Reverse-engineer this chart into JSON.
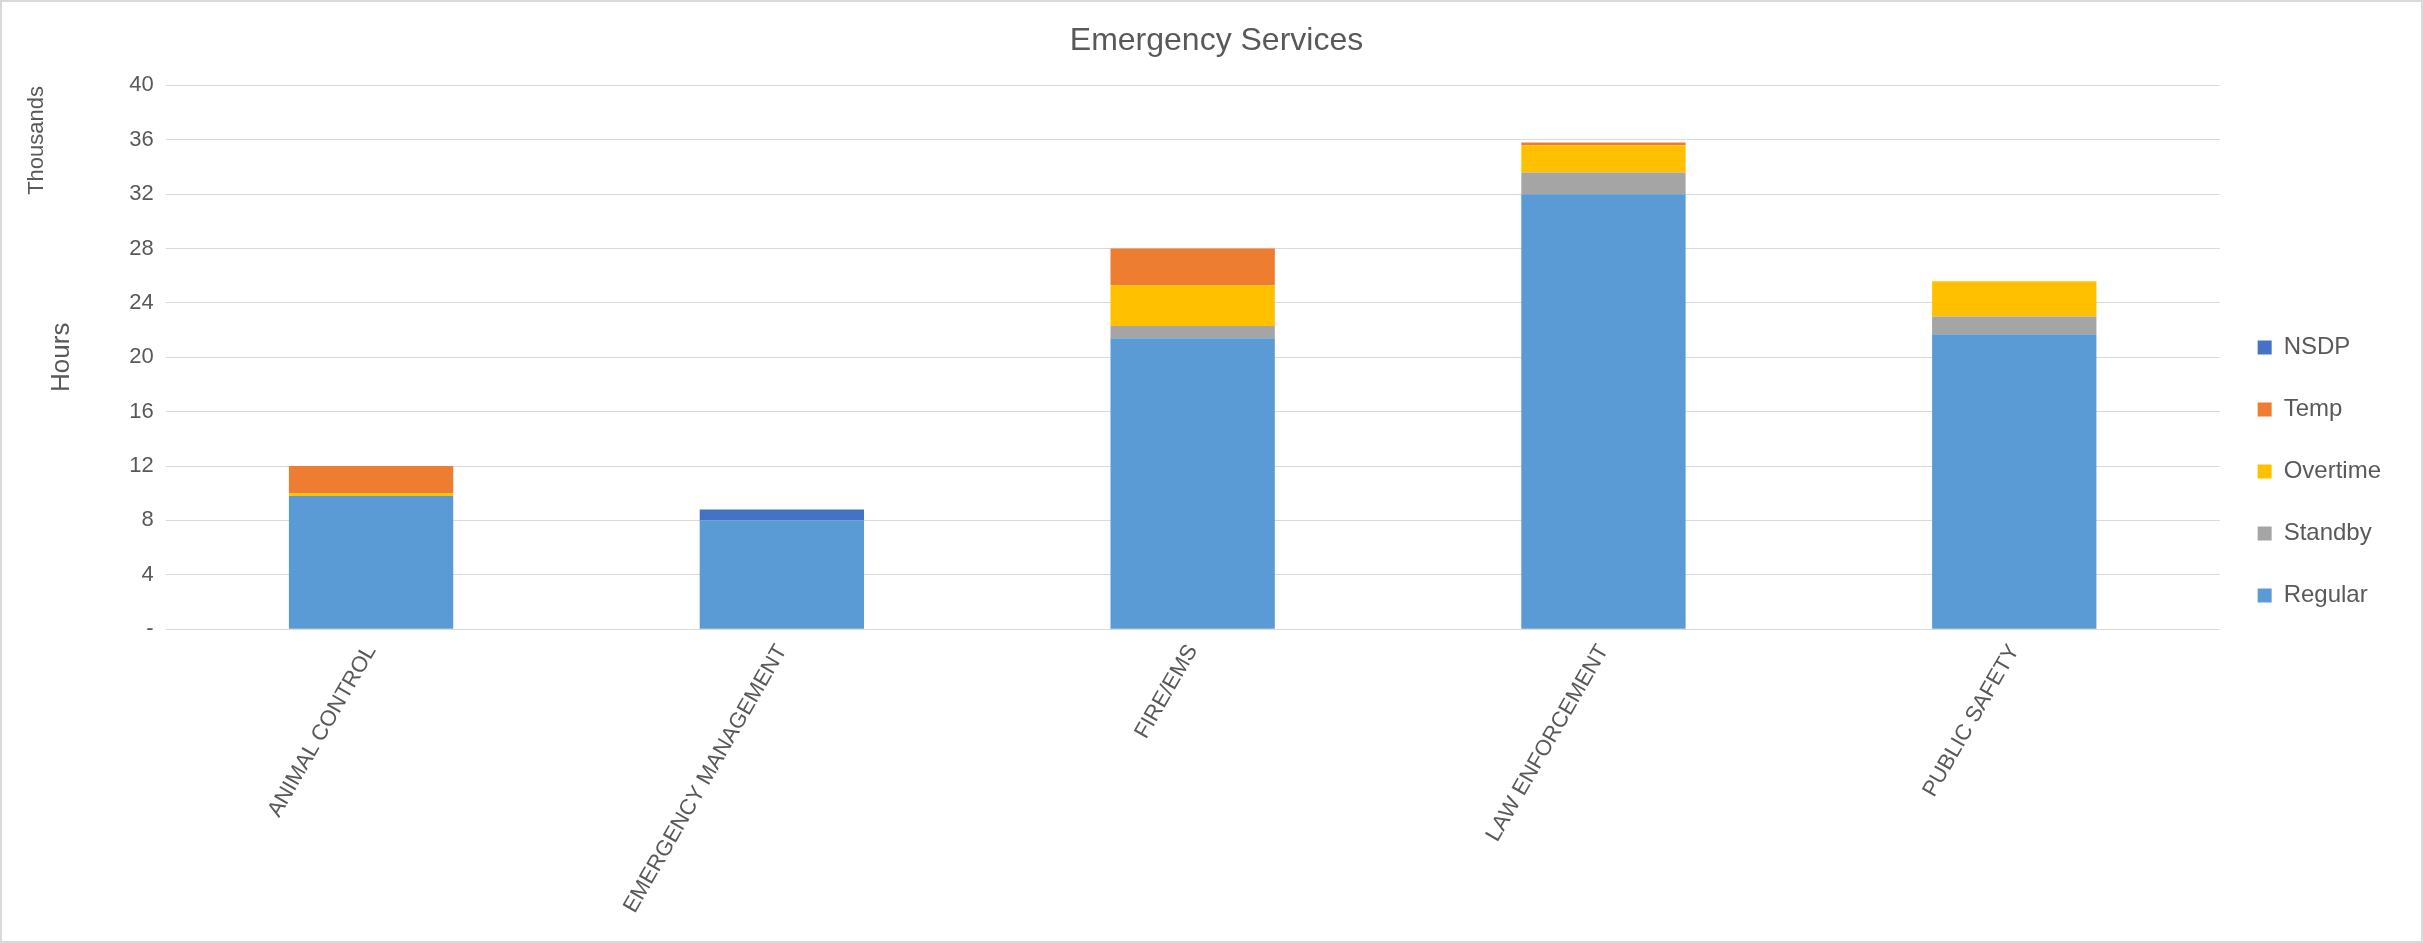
{
  "chart_data": {
    "type": "bar",
    "title": "Emergency Services",
    "ylabel": "Hours",
    "annotations": [
      "Thousands"
    ],
    "categories": [
      "ANIMAL CONTROL",
      "EMERGENCY MANAGEMENT",
      "FIRE/EMS",
      "LAW ENFORCEMENT",
      "PUBLIC SAFETY"
    ],
    "stacked": true,
    "series": [
      {
        "name": "Regular",
        "color": "#5b9bd5",
        "values": [
          9.8,
          8.0,
          21.4,
          32.0,
          21.7
        ]
      },
      {
        "name": "Standby",
        "color": "#a5a5a5",
        "values": [
          null,
          null,
          0.9,
          1.6,
          1.3
        ]
      },
      {
        "name": "Overtime",
        "color": "#ffc000",
        "values": [
          0.2,
          null,
          3.0,
          2.0,
          2.6
        ]
      },
      {
        "name": "Temp",
        "color": "#ed7d31",
        "values": [
          2.0,
          null,
          2.7,
          0.2,
          null
        ]
      },
      {
        "name": "NSDP",
        "color": "#4472c4",
        "values": [
          null,
          0.8,
          null,
          null,
          null
        ]
      }
    ],
    "ylim": [
      0,
      40
    ],
    "yticks": [
      {
        "value": 0,
        "label": "-"
      },
      4,
      8,
      12,
      16,
      20,
      24,
      28,
      32,
      36,
      40
    ],
    "grid": "y",
    "legend": "right"
  }
}
